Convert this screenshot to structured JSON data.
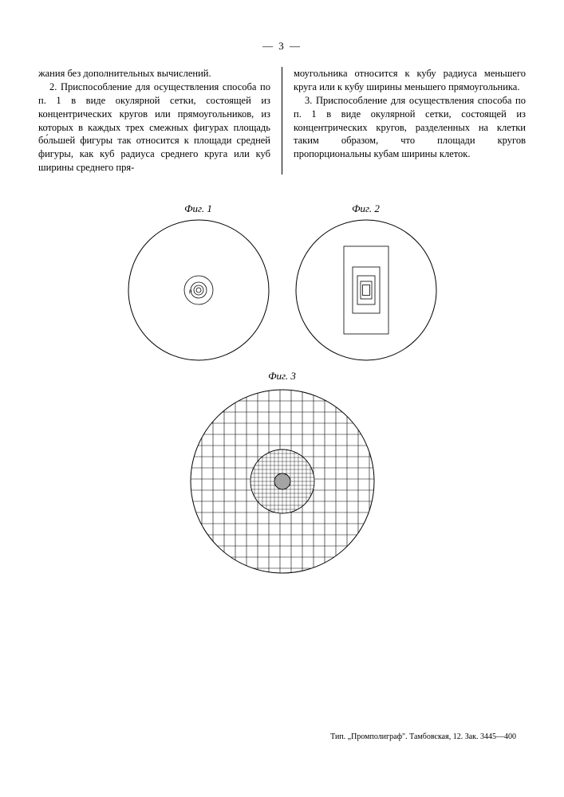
{
  "page_number": "— 3 —",
  "left_column": "жания без дополнительных вычислений.\n   2. Приспособление для осуществления способа по п. 1 в виде окулярной сетки, состоящей из концентрических кругов или прямоугольников, из которых в каждых трех смежных фигурах площадь бо́льшей фигуры так относится к площади средней фигуры, как куб радиуса среднего круга или куб ширины среднего пря-",
  "right_column": "моугольника относится к кубу радиуса меньшего круга или к кубу ширины меньшего прямоугольника.\n   3. Приспособление для осуществления способа по п. 1 в виде окулярной сетки, состоящей из концентрических кругов, разделенных на клетки таким образом, что площади кругов пропорциональны кубам ширины клеток.",
  "fig1_label": "Фиг. 1",
  "fig2_label": "Фиг. 2",
  "fig3_label": "Фиг. 3",
  "footer_text": "Тип. „Промполиграф\". Тамбовская, 12. Зак. 3445—400",
  "diagrams": {
    "fig1": {
      "type": "concentric-circles",
      "outer_r": 88,
      "inner_radii": [
        18,
        10,
        6,
        3
      ],
      "stroke": "#000000",
      "bg": "#ffffff"
    },
    "fig2": {
      "type": "concentric-rectangles",
      "outer_r": 88,
      "rect_widths": [
        56,
        34,
        22,
        14,
        9
      ],
      "rect_heights": [
        110,
        58,
        36,
        22,
        13
      ],
      "stroke": "#000000",
      "bg": "#ffffff"
    },
    "fig3": {
      "type": "grid-circles",
      "outer_r": 115,
      "inner_r": 40,
      "core_r": 10,
      "outer_grid_step": 14,
      "inner_grid_step": 5,
      "stroke": "#000000",
      "bg": "#ffffff"
    }
  }
}
